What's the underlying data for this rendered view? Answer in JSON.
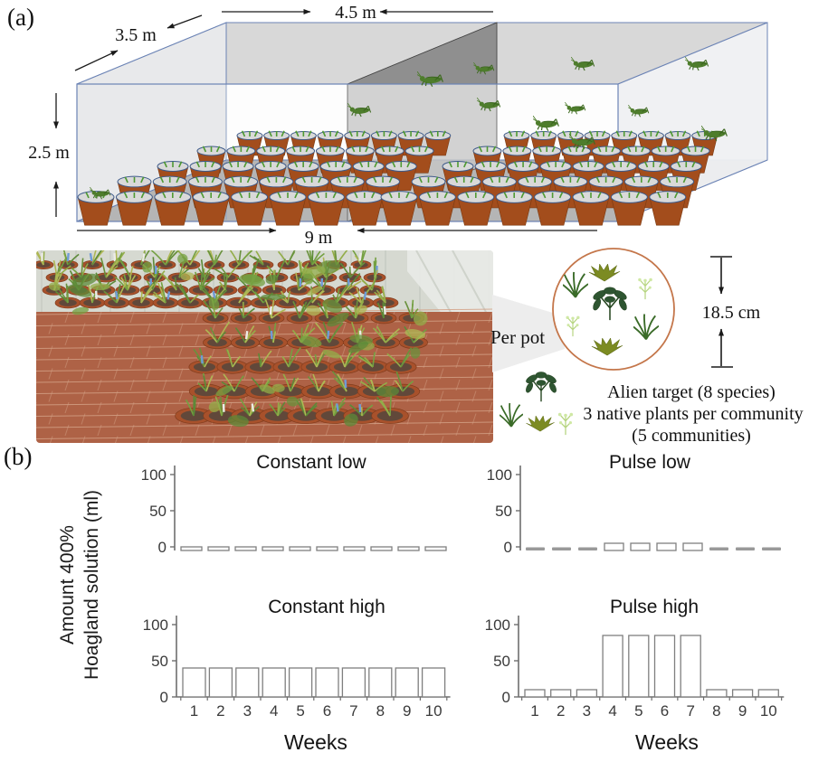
{
  "panel_a": {
    "label": "(a)",
    "dim_width_top": "4.5 m",
    "dim_depth": "3.5 m",
    "dim_height": "2.5 m",
    "dim_length_bottom": "9 m",
    "per_pot_label": "Per pot",
    "pot_height_label": "18.5 cm",
    "legend_line1": "Alien target (8 species)",
    "legend_line2": "3 native plants per community",
    "legend_line3": "(5 communities)",
    "grasshoppers": [
      [
        112,
        214
      ],
      [
        397,
        121
      ],
      [
        474,
        86
      ],
      [
        536,
        76
      ],
      [
        540,
        115
      ],
      [
        602,
        135
      ],
      [
        637,
        120
      ],
      [
        644,
        70
      ],
      [
        642,
        155
      ],
      [
        707,
        123
      ],
      [
        770,
        70
      ],
      [
        788,
        146
      ]
    ]
  },
  "panel_b": {
    "label": "(b)",
    "y_axis_label_line1": "Amount 400%",
    "y_axis_label_line2": "Hoagland solution (ml)"
  },
  "chart_data": [
    {
      "id": "constant_low",
      "type": "bar",
      "title": "Constant low",
      "categories": [
        "1",
        "2",
        "3",
        "4",
        "5",
        "6",
        "7",
        "8",
        "9",
        "10"
      ],
      "values": [
        5,
        5,
        5,
        5,
        5,
        5,
        5,
        5,
        5,
        5
      ],
      "ylim": [
        0,
        100
      ],
      "yticks": [
        0,
        50,
        100
      ],
      "show_x_tick_labels": false,
      "xlabel": null
    },
    {
      "id": "pulse_low",
      "type": "bar",
      "title": "Pulse low",
      "categories": [
        "1",
        "2",
        "3",
        "4",
        "5",
        "6",
        "7",
        "8",
        "9",
        "10"
      ],
      "values": [
        2,
        2,
        2,
        10,
        10,
        10,
        10,
        2,
        2,
        2
      ],
      "ylim": [
        0,
        100
      ],
      "yticks": [
        0,
        50,
        100
      ],
      "show_x_tick_labels": false,
      "xlabel": null
    },
    {
      "id": "constant_high",
      "type": "bar",
      "title": "Constant high",
      "categories": [
        "1",
        "2",
        "3",
        "4",
        "5",
        "6",
        "7",
        "8",
        "9",
        "10"
      ],
      "values": [
        40,
        40,
        40,
        40,
        40,
        40,
        40,
        40,
        40,
        40
      ],
      "ylim": [
        0,
        100
      ],
      "yticks": [
        0,
        50,
        100
      ],
      "show_x_tick_labels": true,
      "xlabel": "Weeks"
    },
    {
      "id": "pulse_high",
      "type": "bar",
      "title": "Pulse high",
      "categories": [
        "1",
        "2",
        "3",
        "4",
        "5",
        "6",
        "7",
        "8",
        "9",
        "10"
      ],
      "values": [
        10,
        10,
        10,
        85,
        85,
        85,
        85,
        10,
        10,
        10
      ],
      "ylim": [
        0,
        100
      ],
      "yticks": [
        0,
        50,
        100
      ],
      "show_x_tick_labels": true,
      "xlabel": "Weeks"
    }
  ],
  "colors": {
    "accent_circle": "#c4764a",
    "cage_edge": "#6b83b5",
    "pot_brown": "#a34d1c",
    "grasshopper_green": "#4e7d2c",
    "bar_outline": "#7f7f7f",
    "bar_fill": "#ffffff",
    "bar_dash_fill": "#999999",
    "axis_gray": "#6e6e6e",
    "text_black": "#111111"
  }
}
